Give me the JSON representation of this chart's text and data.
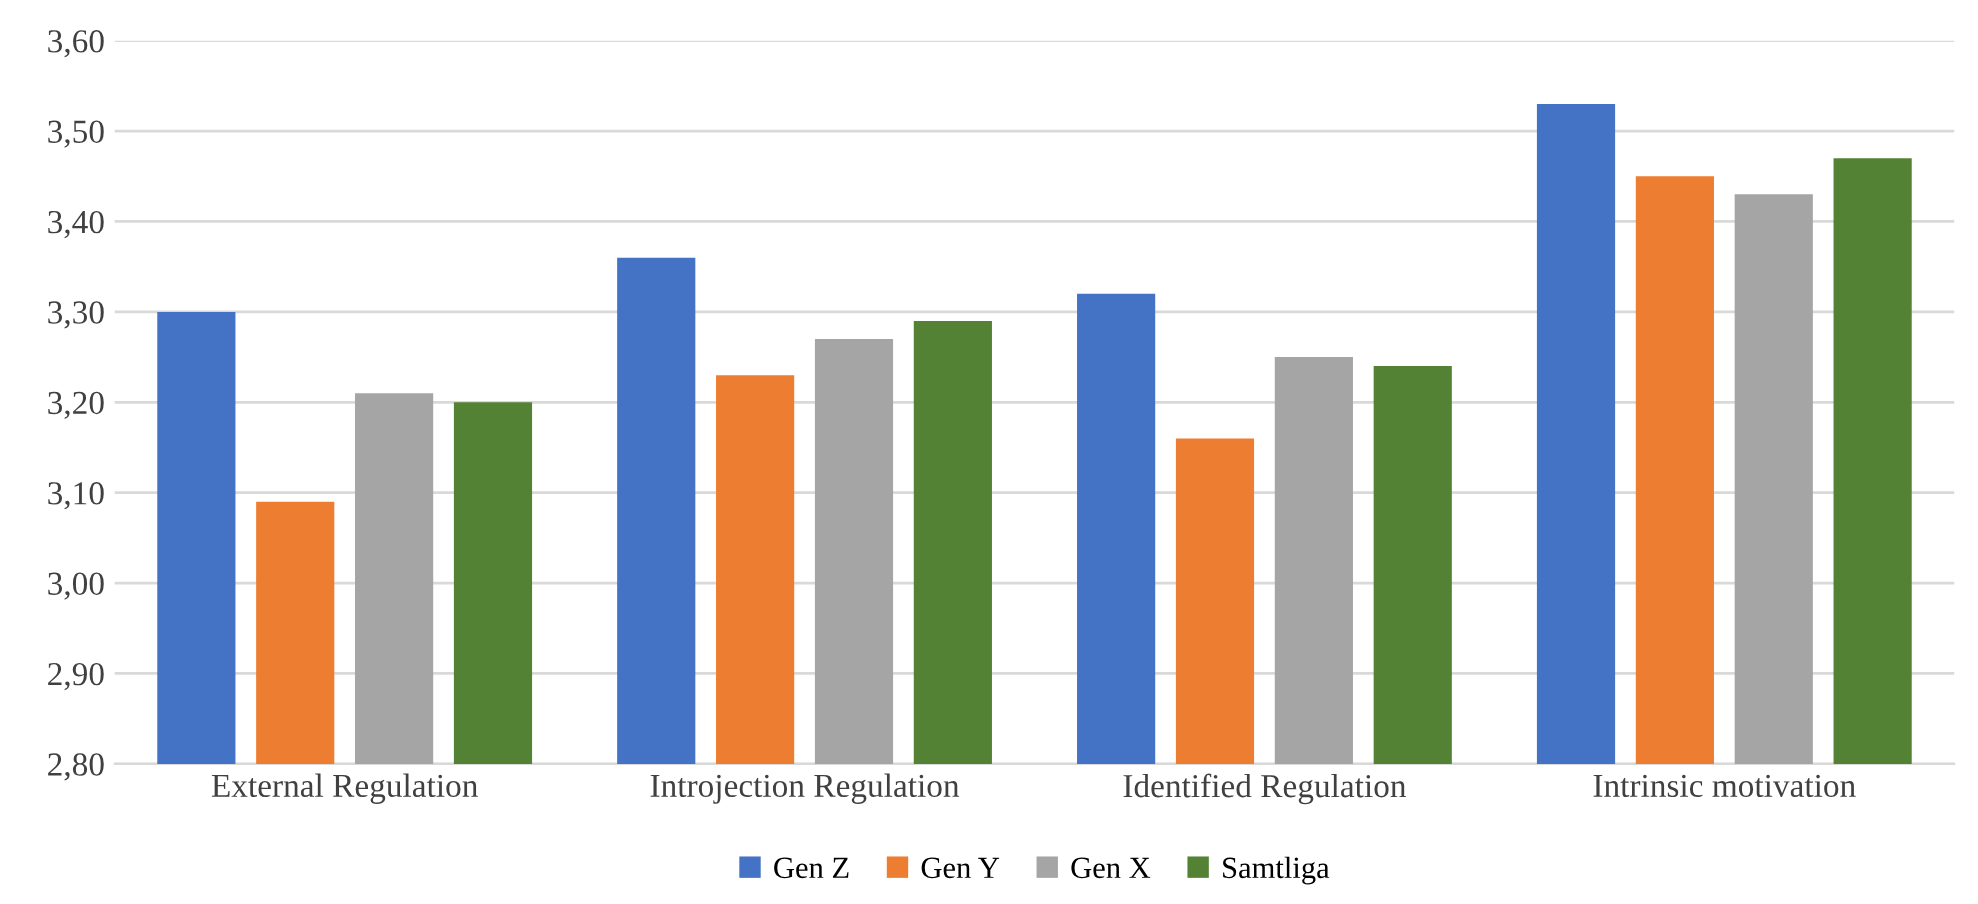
{
  "chart_data": {
    "type": "bar",
    "categories": [
      "External Regulation",
      "Introjection Regulation",
      "Identified Regulation",
      "Intrinsic motivation"
    ],
    "series": [
      {
        "name": "Gen Z",
        "color": "#4472c4",
        "values": [
          3.3,
          3.36,
          3.32,
          3.53
        ]
      },
      {
        "name": "Gen Y",
        "color": "#ed7d31",
        "values": [
          3.09,
          3.23,
          3.16,
          3.45
        ]
      },
      {
        "name": "Gen X",
        "color": "#a5a5a5",
        "values": [
          3.21,
          3.27,
          3.25,
          3.43
        ]
      },
      {
        "name": "Samtliga",
        "color": "#548235",
        "values": [
          3.2,
          3.29,
          3.24,
          3.47
        ]
      }
    ],
    "ylim": [
      2.8,
      3.6
    ],
    "yticks": [
      {
        "value": 2.8,
        "label": "2,80"
      },
      {
        "value": 2.9,
        "label": "2,90"
      },
      {
        "value": 3.0,
        "label": "3,00"
      },
      {
        "value": 3.1,
        "label": "3,10"
      },
      {
        "value": 3.2,
        "label": "3,20"
      },
      {
        "value": 3.3,
        "label": "3,30"
      },
      {
        "value": 3.4,
        "label": "3,40"
      },
      {
        "value": 3.5,
        "label": "3,50"
      },
      {
        "value": 3.6,
        "label": "3,60"
      }
    ],
    "grid": "y",
    "legend": "bottom"
  }
}
